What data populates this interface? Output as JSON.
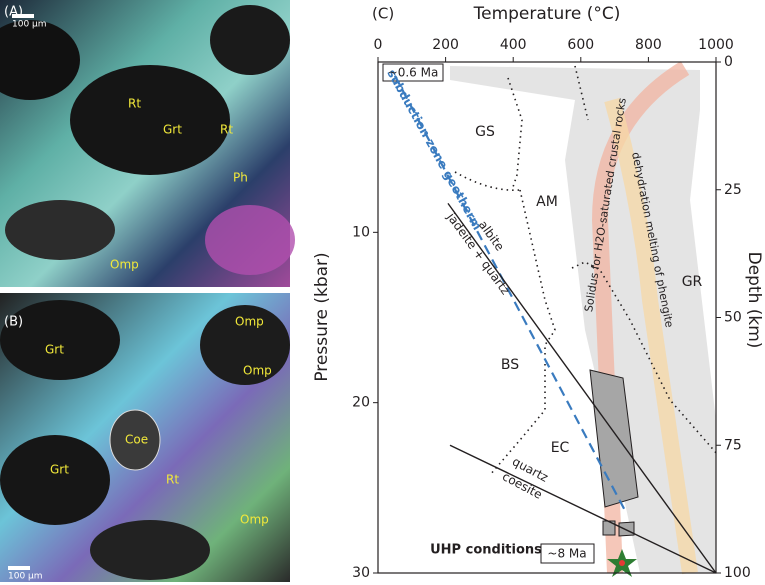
{
  "panels": [
    {
      "label": "(A)",
      "scale": "100 µm",
      "minerals": [
        "Rt",
        "Grt",
        "Rt",
        "Ph",
        "Omp"
      ]
    },
    {
      "label": "(B)",
      "scale": "100 µm",
      "minerals": [
        "Omp",
        "Grt",
        "Omp",
        "Coe",
        "Grt",
        "Rt",
        "Omp"
      ]
    }
  ],
  "chart_data": {
    "type": "line",
    "panel_label": "(C)",
    "xlabel": "Temperature (°C)",
    "ylabel": "Pressure (kbar)",
    "y2label": "Depth (km)",
    "xlim": [
      0,
      1000
    ],
    "xticks": [
      0,
      200,
      400,
      600,
      800,
      1000
    ],
    "ylim": [
      0,
      30
    ],
    "y_inverted": true,
    "yticks": [
      10,
      20,
      30
    ],
    "y2lim": [
      0,
      100
    ],
    "y2ticks": [
      0,
      25,
      50,
      75,
      100
    ],
    "series": [
      {
        "name": "subduction zone geotherm",
        "color": "#3a7bbf",
        "dashed": true,
        "x": [
          50,
          730
        ],
        "values": [
          0.8,
          26.3
        ]
      },
      {
        "color": "#231f20",
        "x": [
          207,
          1000
        ],
        "values": [
          8.3,
          30
        ]
      },
      {
        "color": "#231f20",
        "x": [
          213,
          1000
        ],
        "values": [
          22.5,
          30
        ]
      }
    ],
    "annotations": [
      "~0.6 Ma",
      "~8 Ma",
      "UHP conditions",
      "GS",
      "AM",
      "BS",
      "EC",
      "GR",
      "Solidus for H2O-saturated crustal rocks",
      "dehydration melting of phengite",
      "albite",
      "jadeite + quartz",
      "quartz",
      "coesite"
    ]
  }
}
